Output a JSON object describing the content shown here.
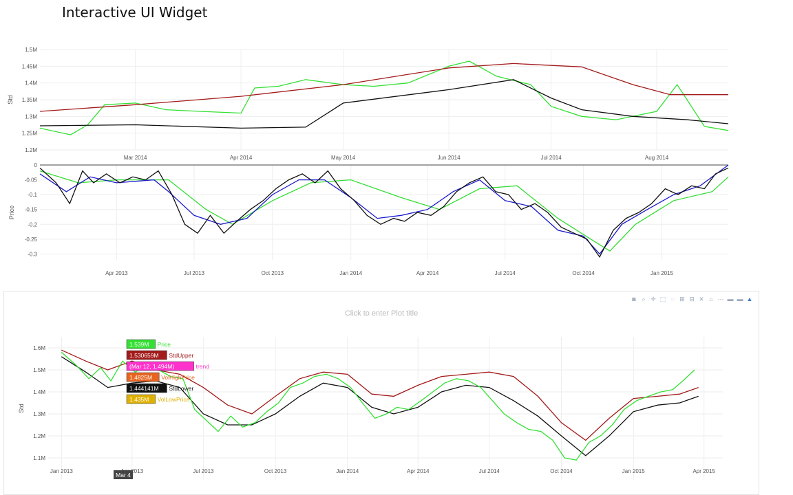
{
  "page": {
    "title": "Interactive UI Widget"
  },
  "colors": {
    "price": "#33e033",
    "std_upper": "#a31a1a",
    "std_lower": "#111111",
    "vol_high": "#e8641e",
    "vol_low": "#e0b000",
    "trend": "#ff33cc",
    "ma_fast": "#1a1acc",
    "ma_slow": "#33dd33",
    "grid": "#eeeeee"
  },
  "chart_data": [
    {
      "type": "line",
      "ylabel": "Std",
      "ylim": [
        1200000,
        1500000
      ],
      "yticks": [
        "1.2M",
        "1.25M",
        "1.3M",
        "1.35M",
        "1.4M",
        "1.45M",
        "1.5M"
      ],
      "ytick_values": [
        1200000,
        1250000,
        1300000,
        1350000,
        1400000,
        1450000,
        1500000
      ],
      "xlim": [
        "2014-02-01",
        "2014-08-22"
      ],
      "xticks": [
        "Mar 2014",
        "Apr 2014",
        "May 2014",
        "Jun 2014",
        "Jul 2014",
        "Aug 2014"
      ],
      "xtick_values": [
        "2014-03-01",
        "2014-04-01",
        "2014-05-01",
        "2014-06-01",
        "2014-07-01",
        "2014-08-01"
      ],
      "grid": true,
      "series": [
        {
          "key": "price",
          "x": [
            "2014-02-01",
            "2014-02-10",
            "2014-02-15",
            "2014-02-20",
            "2014-03-01",
            "2014-03-10",
            "2014-03-20",
            "2014-04-01",
            "2014-04-05",
            "2014-04-12",
            "2014-04-20",
            "2014-05-01",
            "2014-05-10",
            "2014-05-20",
            "2014-06-01",
            "2014-06-07",
            "2014-06-15",
            "2014-06-25",
            "2014-07-01",
            "2014-07-10",
            "2014-07-20",
            "2014-08-01",
            "2014-08-07",
            "2014-08-15",
            "2014-08-22"
          ],
          "y": [
            1265000,
            1245000,
            1275000,
            1335000,
            1340000,
            1320000,
            1315000,
            1310000,
            1385000,
            1390000,
            1410000,
            1395000,
            1390000,
            1400000,
            1450000,
            1465000,
            1420000,
            1395000,
            1330000,
            1300000,
            1290000,
            1315000,
            1395000,
            1270000,
            1258000
          ]
        },
        {
          "key": "std_upper",
          "x": [
            "2014-02-01",
            "2014-03-01",
            "2014-04-01",
            "2014-05-01",
            "2014-06-01",
            "2014-06-20",
            "2014-07-10",
            "2014-07-25",
            "2014-08-05",
            "2014-08-22"
          ],
          "y": [
            1315000,
            1335000,
            1360000,
            1395000,
            1445000,
            1458000,
            1448000,
            1395000,
            1365000,
            1365000
          ]
        },
        {
          "key": "std_lower",
          "x": [
            "2014-02-01",
            "2014-03-01",
            "2014-04-01",
            "2014-04-20",
            "2014-05-01",
            "2014-06-01",
            "2014-06-20",
            "2014-07-01",
            "2014-07-10",
            "2014-07-25",
            "2014-08-10",
            "2014-08-22"
          ],
          "y": [
            1272000,
            1275000,
            1265000,
            1268000,
            1340000,
            1380000,
            1410000,
            1355000,
            1320000,
            1300000,
            1290000,
            1278000
          ]
        }
      ]
    },
    {
      "type": "line",
      "ylabel": "Price",
      "ylim": [
        -0.32,
        0
      ],
      "yticks": [
        "0",
        "-0.05",
        "-0.1",
        "-0.15",
        "-0.2",
        "-0.25",
        "-0.3"
      ],
      "ytick_values": [
        0,
        -0.05,
        -0.1,
        -0.15,
        -0.2,
        -0.25,
        -0.3
      ],
      "xlim": [
        "2013-01-01",
        "2015-03-20"
      ],
      "xticks": [
        "Apr 2013",
        "Jul 2013",
        "Oct 2013",
        "Jan 2014",
        "Apr 2014",
        "Jul 2014",
        "Oct 2014",
        "Jan 2015"
      ],
      "xtick_values": [
        "2013-04-01",
        "2013-07-01",
        "2013-10-01",
        "2014-01-01",
        "2014-04-01",
        "2014-07-01",
        "2014-10-01",
        "2015-01-01"
      ],
      "grid": true,
      "series": [
        {
          "key": "ma_slow",
          "x": [
            "2013-01-01",
            "2013-02-15",
            "2013-04-01",
            "2013-06-01",
            "2013-07-15",
            "2013-08-15",
            "2013-10-01",
            "2013-11-15",
            "2014-01-01",
            "2014-03-01",
            "2014-04-15",
            "2014-06-01",
            "2014-07-15",
            "2014-09-01",
            "2014-10-15",
            "2014-11-01",
            "2014-12-01",
            "2015-01-15",
            "2015-03-01",
            "2015-03-20"
          ],
          "y": [
            -0.02,
            -0.06,
            -0.05,
            -0.05,
            -0.15,
            -0.2,
            -0.12,
            -0.06,
            -0.05,
            -0.11,
            -0.15,
            -0.08,
            -0.07,
            -0.18,
            -0.26,
            -0.29,
            -0.2,
            -0.12,
            -0.09,
            -0.04
          ]
        },
        {
          "key": "ma_fast",
          "x": [
            "2013-01-01",
            "2013-02-01",
            "2013-03-01",
            "2013-04-01",
            "2013-05-15",
            "2013-06-01",
            "2013-07-01",
            "2013-08-01",
            "2013-09-01",
            "2013-10-01",
            "2013-11-01",
            "2013-12-01",
            "2014-01-01",
            "2014-02-01",
            "2014-03-01",
            "2014-04-01",
            "2014-05-01",
            "2014-06-01",
            "2014-07-01",
            "2014-08-01",
            "2014-09-01",
            "2014-10-01",
            "2014-10-20",
            "2014-11-15",
            "2014-12-15",
            "2015-01-15",
            "2015-02-15",
            "2015-03-20"
          ],
          "y": [
            -0.03,
            -0.09,
            -0.04,
            -0.06,
            -0.05,
            -0.09,
            -0.17,
            -0.2,
            -0.18,
            -0.1,
            -0.05,
            -0.05,
            -0.11,
            -0.18,
            -0.17,
            -0.15,
            -0.09,
            -0.05,
            -0.12,
            -0.14,
            -0.22,
            -0.24,
            -0.3,
            -0.2,
            -0.15,
            -0.1,
            -0.07,
            0
          ]
        },
        {
          "key": "std_lower",
          "x": [
            "2013-01-01",
            "2013-01-20",
            "2013-02-05",
            "2013-02-20",
            "2013-03-05",
            "2013-03-20",
            "2013-04-05",
            "2013-04-20",
            "2013-05-05",
            "2013-05-20",
            "2013-06-05",
            "2013-06-20",
            "2013-07-05",
            "2013-07-20",
            "2013-08-05",
            "2013-08-20",
            "2013-09-05",
            "2013-09-20",
            "2013-10-05",
            "2013-10-20",
            "2013-11-05",
            "2013-11-20",
            "2013-12-05",
            "2013-12-20",
            "2014-01-05",
            "2014-01-20",
            "2014-02-05",
            "2014-02-20",
            "2014-03-05",
            "2014-03-20",
            "2014-04-05",
            "2014-04-20",
            "2014-05-05",
            "2014-05-20",
            "2014-06-05",
            "2014-06-20",
            "2014-07-05",
            "2014-07-20",
            "2014-08-05",
            "2014-08-20",
            "2014-09-05",
            "2014-09-20",
            "2014-10-05",
            "2014-10-20",
            "2014-11-05",
            "2014-11-20",
            "2014-12-05",
            "2014-12-20",
            "2015-01-05",
            "2015-01-20",
            "2015-02-05",
            "2015-02-20",
            "2015-03-05",
            "2015-03-20"
          ],
          "y": [
            -0.01,
            -0.06,
            -0.13,
            -0.02,
            -0.06,
            -0.03,
            -0.06,
            -0.04,
            -0.05,
            -0.02,
            -0.1,
            -0.2,
            -0.23,
            -0.17,
            -0.23,
            -0.19,
            -0.15,
            -0.12,
            -0.08,
            -0.05,
            -0.03,
            -0.06,
            -0.02,
            -0.08,
            -0.12,
            -0.17,
            -0.2,
            -0.18,
            -0.19,
            -0.16,
            -0.17,
            -0.14,
            -0.09,
            -0.06,
            -0.04,
            -0.09,
            -0.1,
            -0.15,
            -0.13,
            -0.16,
            -0.21,
            -0.23,
            -0.25,
            -0.31,
            -0.22,
            -0.18,
            -0.16,
            -0.13,
            -0.08,
            -0.1,
            -0.07,
            -0.08,
            -0.03,
            -0.01
          ]
        }
      ]
    },
    {
      "type": "line",
      "ylabel": "Std",
      "title": "Click to enter Plot title",
      "ylim": [
        1000000,
        1650000
      ],
      "yticks": [
        "1.1M",
        "1.2M",
        "1.3M",
        "1.4M",
        "1.5M",
        "1.6M"
      ],
      "ytick_values": [
        1100000,
        1200000,
        1300000,
        1400000,
        1500000,
        1600000
      ],
      "xlim": [
        "2012-12-15",
        "2015-04-25"
      ],
      "xticks": [
        "Jan 2013",
        "Apr 2013",
        "Jul 2013",
        "Oct 2013",
        "Jan 2014",
        "Apr 2014",
        "Jul 2014",
        "Oct 2014",
        "Jan 2015",
        "Apr 2015"
      ],
      "xtick_values": [
        "2013-01-01",
        "2013-04-01",
        "2013-07-01",
        "2013-10-01",
        "2014-01-01",
        "2014-04-01",
        "2014-07-01",
        "2014-10-01",
        "2015-01-01",
        "2015-04-01"
      ],
      "grid": true,
      "hover_x_label": "Mar 4",
      "hover_labels": [
        {
          "value": "1.539M",
          "name": "Price",
          "key": "price"
        },
        {
          "value": "1.530659M",
          "name": "StdUpper",
          "key": "std_upper"
        },
        {
          "value": "(Mar 12, 1.494M)",
          "name": "trend",
          "key": "trend"
        },
        {
          "value": "1.4825M",
          "name": "VolHighPrice",
          "key": "vol_high"
        },
        {
          "value": "1.444141M",
          "name": "StdLower",
          "key": "std_lower"
        },
        {
          "value": "1.435M",
          "name": "VolLowPrice",
          "key": "vol_low"
        }
      ],
      "series": [
        {
          "key": "std_upper",
          "x": [
            "2013-01-01",
            "2013-02-01",
            "2013-03-01",
            "2013-04-01",
            "2013-05-01",
            "2013-06-01",
            "2013-07-01",
            "2013-08-01",
            "2013-09-01",
            "2013-10-01",
            "2013-11-01",
            "2013-12-01",
            "2014-01-01",
            "2014-02-01",
            "2014-03-01",
            "2014-04-01",
            "2014-05-01",
            "2014-06-01",
            "2014-07-01",
            "2014-08-01",
            "2014-09-01",
            "2014-10-01",
            "2014-11-01",
            "2014-12-01",
            "2015-01-01",
            "2015-02-01",
            "2015-03-01",
            "2015-03-25"
          ],
          "y": [
            1590000,
            1540000,
            1500000,
            1540000,
            1500000,
            1480000,
            1420000,
            1340000,
            1300000,
            1380000,
            1460000,
            1490000,
            1480000,
            1390000,
            1380000,
            1430000,
            1470000,
            1480000,
            1490000,
            1470000,
            1380000,
            1260000,
            1180000,
            1280000,
            1370000,
            1380000,
            1390000,
            1420000
          ]
        },
        {
          "key": "std_lower",
          "x": [
            "2013-01-01",
            "2013-02-01",
            "2013-03-01",
            "2013-04-01",
            "2013-05-01",
            "2013-06-01",
            "2013-07-01",
            "2013-08-01",
            "2013-09-01",
            "2013-10-01",
            "2013-11-01",
            "2013-12-01",
            "2014-01-01",
            "2014-02-01",
            "2014-03-01",
            "2014-04-01",
            "2014-05-01",
            "2014-06-01",
            "2014-07-01",
            "2014-08-01",
            "2014-09-01",
            "2014-10-01",
            "2014-11-01",
            "2014-12-01",
            "2015-01-01",
            "2015-02-01",
            "2015-03-01",
            "2015-03-25"
          ],
          "y": [
            1560000,
            1490000,
            1420000,
            1440000,
            1450000,
            1420000,
            1300000,
            1250000,
            1250000,
            1300000,
            1380000,
            1440000,
            1420000,
            1330000,
            1300000,
            1330000,
            1400000,
            1430000,
            1420000,
            1360000,
            1290000,
            1200000,
            1110000,
            1200000,
            1310000,
            1340000,
            1350000,
            1380000
          ]
        },
        {
          "key": "price",
          "x": [
            "2013-01-01",
            "2013-01-20",
            "2013-02-05",
            "2013-02-20",
            "2013-03-05",
            "2013-03-20",
            "2013-04-05",
            "2013-04-20",
            "2013-05-05",
            "2013-05-20",
            "2013-06-05",
            "2013-06-20",
            "2013-07-05",
            "2013-07-20",
            "2013-08-05",
            "2013-08-20",
            "2013-09-05",
            "2013-09-20",
            "2013-10-05",
            "2013-10-20",
            "2013-11-05",
            "2013-11-20",
            "2013-12-05",
            "2013-12-20",
            "2014-01-05",
            "2014-01-20",
            "2014-02-05",
            "2014-02-20",
            "2014-03-05",
            "2014-03-20",
            "2014-04-05",
            "2014-04-20",
            "2014-05-05",
            "2014-05-20",
            "2014-06-05",
            "2014-06-20",
            "2014-07-05",
            "2014-07-20",
            "2014-08-05",
            "2014-08-20",
            "2014-09-05",
            "2014-09-20",
            "2014-10-05",
            "2014-10-20",
            "2014-11-05",
            "2014-11-20",
            "2014-12-05",
            "2014-12-20",
            "2015-01-05",
            "2015-01-20",
            "2015-02-05",
            "2015-02-20",
            "2015-03-05",
            "2015-03-20"
          ],
          "y": [
            1580000,
            1520000,
            1460000,
            1510000,
            1450000,
            1540000,
            1490000,
            1520000,
            1500000,
            1470000,
            1460000,
            1320000,
            1270000,
            1220000,
            1290000,
            1240000,
            1260000,
            1310000,
            1350000,
            1420000,
            1440000,
            1470000,
            1480000,
            1460000,
            1420000,
            1350000,
            1280000,
            1300000,
            1330000,
            1320000,
            1360000,
            1400000,
            1440000,
            1460000,
            1450000,
            1420000,
            1360000,
            1300000,
            1260000,
            1230000,
            1220000,
            1180000,
            1100000,
            1090000,
            1170000,
            1200000,
            1250000,
            1320000,
            1360000,
            1380000,
            1400000,
            1410000,
            1450000,
            1500000
          ]
        }
      ]
    }
  ],
  "modebar": {
    "icons": [
      "camera-icon",
      "zoom-icon",
      "pan-icon",
      "box-select-icon",
      "lasso-icon",
      "zoom-in-icon",
      "zoom-out-icon",
      "autoscale-icon",
      "home-icon",
      "spike-icon",
      "compare-hover-icon",
      "closest-hover-icon",
      "plotly-logo-icon"
    ],
    "glyphs": [
      "◙",
      "⌕",
      "✛",
      "⬚",
      "◌",
      "⊞",
      "⊟",
      "✕",
      "⌂",
      "⋯",
      "▬",
      "▬",
      "▲"
    ]
  }
}
